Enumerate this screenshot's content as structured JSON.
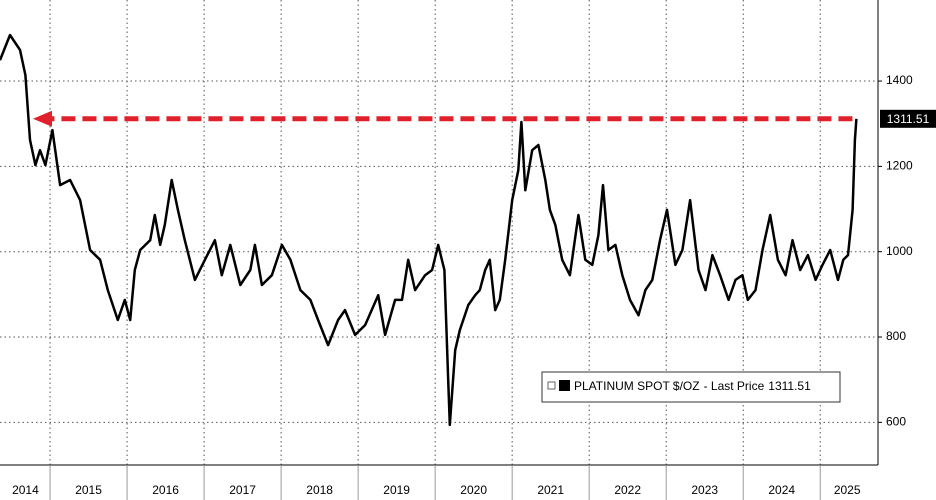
{
  "chart_data": {
    "type": "line",
    "series": [
      {
        "name": "PLATINUM SPOT $/OZ",
        "color": "#000000",
        "x": [
          2014.35,
          2014.48,
          2014.61,
          2014.68,
          2014.74,
          2014.81,
          2014.87,
          2014.94,
          2015.03,
          2015.13,
          2015.26,
          2015.39,
          2015.52,
          2015.65,
          2015.75,
          2015.88,
          2015.97,
          2016.04,
          2016.1,
          2016.17,
          2016.3,
          2016.36,
          2016.43,
          2016.49,
          2016.58,
          2016.66,
          2016.75,
          2016.88,
          2017.01,
          2017.14,
          2017.23,
          2017.34,
          2017.47,
          2017.6,
          2017.66,
          2017.75,
          2017.88,
          2018.01,
          2018.12,
          2018.25,
          2018.38,
          2018.48,
          2018.61,
          2018.74,
          2018.83,
          2018.96,
          2019.09,
          2019.26,
          2019.35,
          2019.48,
          2019.57,
          2019.65,
          2019.74,
          2019.87,
          2019.96,
          2020.04,
          2020.12,
          2020.17,
          2020.19,
          2020.26,
          2020.32,
          2020.43,
          2020.52,
          2020.58,
          2020.65,
          2020.71,
          2020.78,
          2020.84,
          2020.91,
          2021.0,
          2021.08,
          2021.12,
          2021.17,
          2021.26,
          2021.34,
          2021.43,
          2021.49,
          2021.56,
          2021.65,
          2021.75,
          2021.86,
          2021.95,
          2022.04,
          2022.12,
          2022.18,
          2022.25,
          2022.34,
          2022.43,
          2022.53,
          2022.64,
          2022.73,
          2022.82,
          2022.92,
          2023.01,
          2023.12,
          2023.21,
          2023.31,
          2023.42,
          2023.51,
          2023.6,
          2023.7,
          2023.81,
          2023.9,
          2023.99,
          2024.06,
          2024.16,
          2024.25,
          2024.35,
          2024.45,
          2024.55,
          2024.64,
          2024.74,
          2024.84,
          2024.94,
          2025.03,
          2025.13,
          2025.23,
          2025.3,
          2025.36,
          2025.42,
          2025.45,
          2025.47
        ],
        "values": [
          1449,
          1508,
          1473,
          1414,
          1262,
          1203,
          1238,
          1203,
          1285,
          1156,
          1168,
          1121,
          1004,
          981,
          910,
          840,
          887,
          840,
          957,
          1004,
          1027,
          1086,
          1016,
          1063,
          1168,
          1098,
          1027,
          934,
          981,
          1027,
          945,
          1016,
          922,
          957,
          1016,
          922,
          945,
          1016,
          981,
          910,
          887,
          840,
          781,
          840,
          863,
          805,
          828,
          898,
          805,
          887,
          887,
          981,
          910,
          945,
          957,
          1016,
          957,
          699,
          594,
          769,
          816,
          875,
          898,
          910,
          957,
          981,
          863,
          887,
          981,
          1121,
          1191,
          1304,
          1144,
          1238,
          1250,
          1168,
          1098,
          1063,
          981,
          945,
          1086,
          981,
          969,
          1039,
          1156,
          1004,
          1016,
          945,
          887,
          851,
          910,
          934,
          1027,
          1098,
          969,
          1004,
          1121,
          957,
          910,
          992,
          945,
          887,
          934,
          945,
          887,
          910,
          1004,
          1086,
          981,
          945,
          1027,
          957,
          992,
          934,
          969,
          1004,
          934,
          981,
          992,
          1098,
          1262,
          1311.51
        ]
      }
    ],
    "legend_suffix": "- Last Price",
    "xlim": [
      2014.35,
      2025.75
    ],
    "xgrid": [
      2015,
      2016,
      2017,
      2018,
      2019,
      2020,
      2021,
      2022,
      2023,
      2024,
      2025
    ],
    "xticks": [
      {
        "value": 2014.68,
        "label": "2014"
      },
      {
        "value": 2015.5,
        "label": "2015"
      },
      {
        "value": 2016.5,
        "label": "2016"
      },
      {
        "value": 2017.5,
        "label": "2017"
      },
      {
        "value": 2018.5,
        "label": "2018"
      },
      {
        "value": 2019.5,
        "label": "2019"
      },
      {
        "value": 2020.5,
        "label": "2020"
      },
      {
        "value": 2021.5,
        "label": "2021"
      },
      {
        "value": 2022.5,
        "label": "2022"
      },
      {
        "value": 2023.5,
        "label": "2023"
      },
      {
        "value": 2024.5,
        "label": "2024"
      },
      {
        "value": 2025.35,
        "label": "2025"
      }
    ],
    "ylim": [
      500,
      1590
    ],
    "yticks": [
      600,
      800,
      1000,
      1200,
      1400
    ],
    "grid": true,
    "annotation_color": "#e0202a"
  }
}
